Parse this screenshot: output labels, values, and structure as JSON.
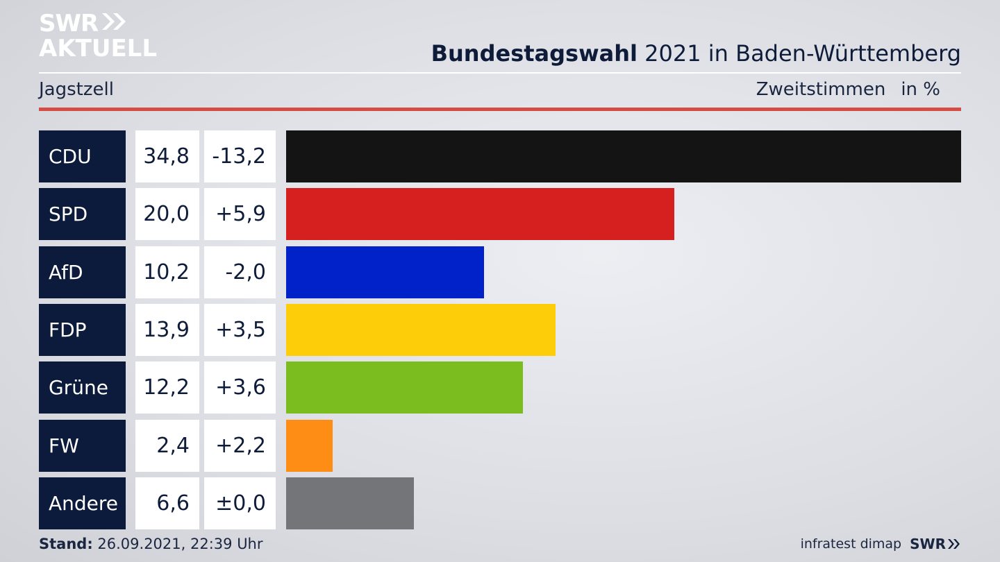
{
  "logo": {
    "line1": "SWR",
    "line2": "AKTUELL"
  },
  "header": {
    "title_bold": "Bundestagswahl",
    "title_rest": "2021 in Baden-Württemberg",
    "region": "Jagstzell",
    "vote_type": "Zweitstimmen",
    "unit": "in %"
  },
  "chart_data": {
    "type": "bar",
    "categories": [
      "CDU",
      "SPD",
      "AfD",
      "FDP",
      "Grüne",
      "FW",
      "Andere"
    ],
    "values": [
      34.8,
      20.0,
      10.2,
      13.9,
      12.2,
      2.4,
      6.6
    ],
    "value_labels": [
      "34,8",
      "20,0",
      "10,2",
      "13,9",
      "12,2",
      "2,4",
      "6,6"
    ],
    "diff_labels": [
      "-13,2",
      "+5,9",
      "-2,0",
      "+3,5",
      "+3,6",
      "+2,2",
      "±0,0"
    ],
    "colors": [
      "#141414",
      "#d62020",
      "#0022c8",
      "#fdcd09",
      "#7bbd1e",
      "#fd8d15",
      "#747578"
    ],
    "xlim": [
      0,
      34.8
    ]
  },
  "footer": {
    "stand_label": "Stand:",
    "stand_value": "26.09.2021, 22:39 Uhr",
    "source": "infratest dimap",
    "brand": "SWR"
  }
}
